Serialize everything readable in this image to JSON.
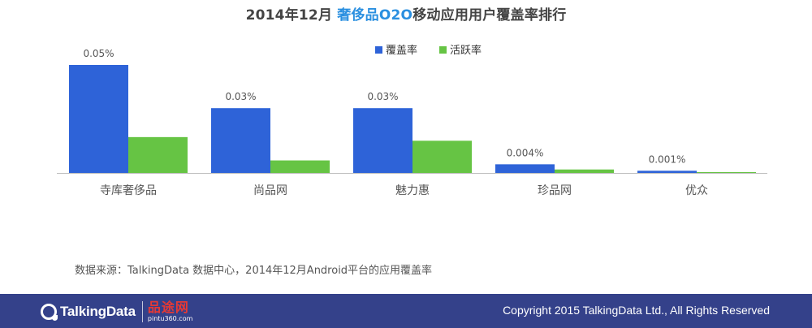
{
  "title": {
    "prefix": "2014年12月",
    "highlight": "奢侈品O2O",
    "suffix": "移动应用用户覆盖率排行"
  },
  "source": "数据来源：TalkingData 数据中心，2014年12月Android平台的应用覆盖率",
  "footer": {
    "logo_text": "TalkingData",
    "partner_name": "品途网",
    "partner_url": "pintu360.com",
    "copyright": "Copyright 2015 TalkingData Ltd., All Rights Reserved"
  },
  "chart_data": {
    "type": "bar",
    "categories": [
      "寺库奢侈品",
      "尚品网",
      "魅力惠",
      "珍品网",
      "优众"
    ],
    "series": [
      {
        "name": "覆盖率",
        "color": "#2e63d8",
        "values": [
          0.05,
          0.03,
          0.03,
          0.004,
          0.001
        ],
        "labels": [
          "0.05%",
          "0.03%",
          "0.03%",
          "0.004%",
          "0.001%"
        ]
      },
      {
        "name": "活跃率",
        "color": "#66c444",
        "values": [
          0.0166,
          0.0058,
          0.0149,
          0.0016,
          0.0003
        ]
      }
    ],
    "ylim": [
      0,
      0.05
    ],
    "grid": false,
    "legend_position": "top-center"
  }
}
